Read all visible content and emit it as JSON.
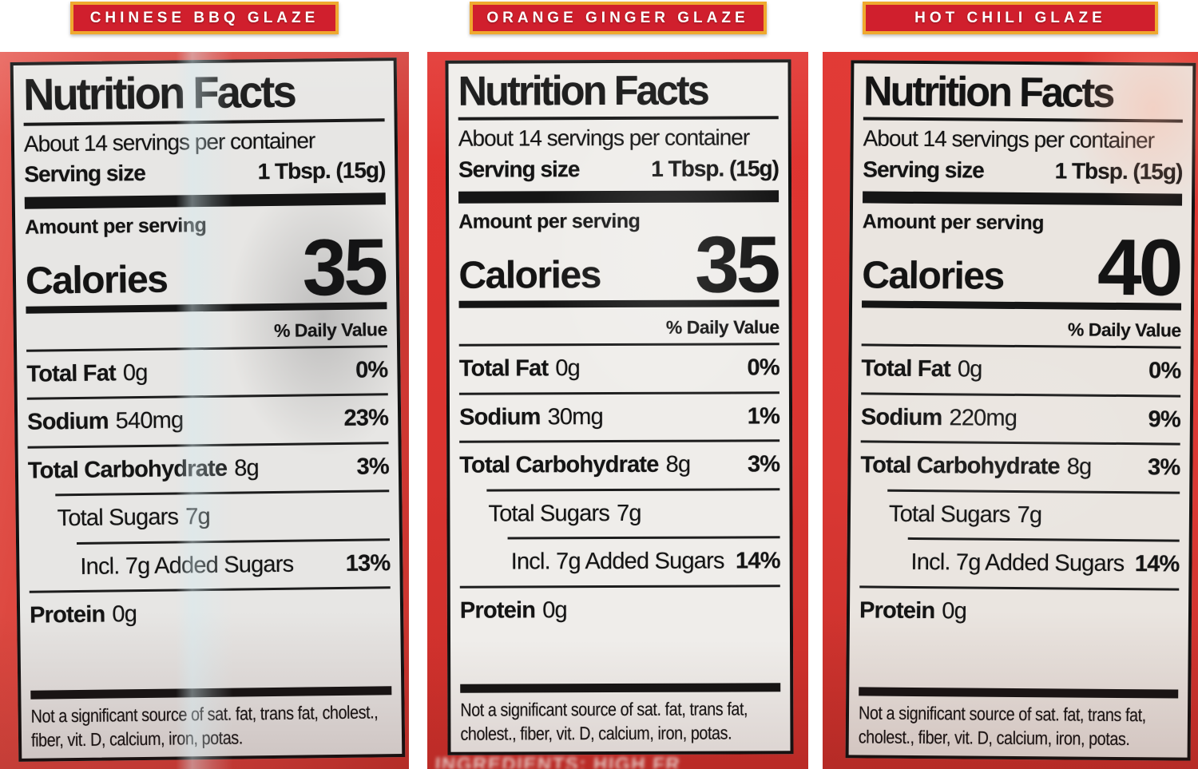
{
  "banners": [
    {
      "label": "CHINESE BBQ GLAZE"
    },
    {
      "label": "ORANGE GINGER GLAZE"
    },
    {
      "label": "HOT CHILI GLAZE"
    }
  ],
  "labels": [
    {
      "title": "Nutrition Facts",
      "servings": "About 14 servings per container",
      "serving_size_label": "Serving size",
      "serving_size_value": "1 Tbsp. (15g)",
      "amount_per_serving": "Amount per serving",
      "calories_label": "Calories",
      "calories_value": "35",
      "daily_value_header": "% Daily Value",
      "rows": [
        {
          "name": "Total Fat",
          "amount": "0g",
          "dv": "0%"
        },
        {
          "name": "Sodium",
          "amount": "540mg",
          "dv": "23%"
        },
        {
          "name": "Total Carbohydrate",
          "amount": "8g",
          "dv": "3%"
        },
        {
          "name": "Total Sugars",
          "amount": "7g",
          "dv": ""
        },
        {
          "name": "Incl. 7g Added Sugars",
          "amount": "",
          "dv": "13%"
        },
        {
          "name": "Protein",
          "amount": "0g",
          "dv": ""
        }
      ],
      "footnote": "Not a significant source of sat. fat, trans fat, cholest., fiber, vit. D, calcium, iron, potas."
    },
    {
      "title": "Nutrition Facts",
      "servings": "About 14 servings per container",
      "serving_size_label": "Serving size",
      "serving_size_value": "1 Tbsp. (15g)",
      "amount_per_serving": "Amount per serving",
      "calories_label": "Calories",
      "calories_value": "35",
      "daily_value_header": "% Daily Value",
      "rows": [
        {
          "name": "Total Fat",
          "amount": "0g",
          "dv": "0%"
        },
        {
          "name": "Sodium",
          "amount": "30mg",
          "dv": "1%"
        },
        {
          "name": "Total Carbohydrate",
          "amount": "8g",
          "dv": "3%"
        },
        {
          "name": "Total Sugars",
          "amount": "7g",
          "dv": ""
        },
        {
          "name": "Incl. 7g Added Sugars",
          "amount": "",
          "dv": "14%"
        },
        {
          "name": "Protein",
          "amount": "0g",
          "dv": ""
        }
      ],
      "footnote": "Not a significant source of sat. fat, trans fat, cholest., fiber, vit. D, calcium, iron, potas.",
      "partial_bottom_text": "INGREDIENTS: HIGH FR"
    },
    {
      "title": "Nutrition Facts",
      "servings": "About 14 servings per container",
      "serving_size_label": "Serving size",
      "serving_size_value": "1 Tbsp. (15g)",
      "amount_per_serving": "Amount per serving",
      "calories_label": "Calories",
      "calories_value": "40",
      "daily_value_header": "% Daily Value",
      "rows": [
        {
          "name": "Total Fat",
          "amount": "0g",
          "dv": "0%"
        },
        {
          "name": "Sodium",
          "amount": "220mg",
          "dv": "9%"
        },
        {
          "name": "Total Carbohydrate",
          "amount": "8g",
          "dv": "3%"
        },
        {
          "name": "Total Sugars",
          "amount": "7g",
          "dv": ""
        },
        {
          "name": "Incl. 7g Added Sugars",
          "amount": "",
          "dv": "14%"
        },
        {
          "name": "Protein",
          "amount": "0g",
          "dv": ""
        }
      ],
      "footnote": "Not a significant source of sat. fat, trans fat, cholest., fiber, vit. D, calcium, iron, potas."
    }
  ],
  "colors": {
    "banner_red": "#d01f2d",
    "banner_gold": "#efa92f",
    "banner_text": "#ffffff",
    "photo_red": "#dd3a33",
    "label_background": "#ebe9e6",
    "label_text": "#141414"
  }
}
